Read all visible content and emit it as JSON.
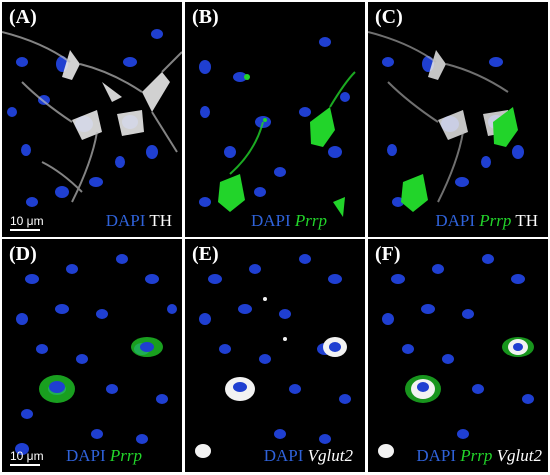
{
  "panels": [
    {
      "label": "(A)",
      "caption": [
        {
          "text": "DAPI",
          "style": "dapi"
        },
        {
          "text": "TH",
          "style": "white"
        }
      ],
      "scalebar": "10 μm"
    },
    {
      "label": "(B)",
      "caption": [
        {
          "text": "DAPI",
          "style": "dapi"
        },
        {
          "text": "Prrp",
          "style": "green"
        }
      ]
    },
    {
      "label": "(C)",
      "caption": [
        {
          "text": "DAPI",
          "style": "dapi"
        },
        {
          "text": "Prrp",
          "style": "green"
        },
        {
          "text": "TH",
          "style": "white"
        }
      ]
    },
    {
      "label": "(D)",
      "caption": [
        {
          "text": "DAPI",
          "style": "dapi"
        },
        {
          "text": "Prrp",
          "style": "green"
        }
      ],
      "scalebar": "10 μm"
    },
    {
      "label": "(E)",
      "caption": [
        {
          "text": "DAPI",
          "style": "dapi"
        },
        {
          "text": "Vglut2",
          "style": "white-italic"
        }
      ]
    },
    {
      "label": "(F)",
      "caption": [
        {
          "text": "DAPI",
          "style": "dapi"
        },
        {
          "text": "Prrp",
          "style": "green"
        },
        {
          "text": "Vglut2",
          "style": "white-italic"
        }
      ]
    }
  ],
  "colors": {
    "dapi": "#2f62d9",
    "prrp": "#22d42a",
    "th": "#ffffff",
    "background": "#000000"
  }
}
